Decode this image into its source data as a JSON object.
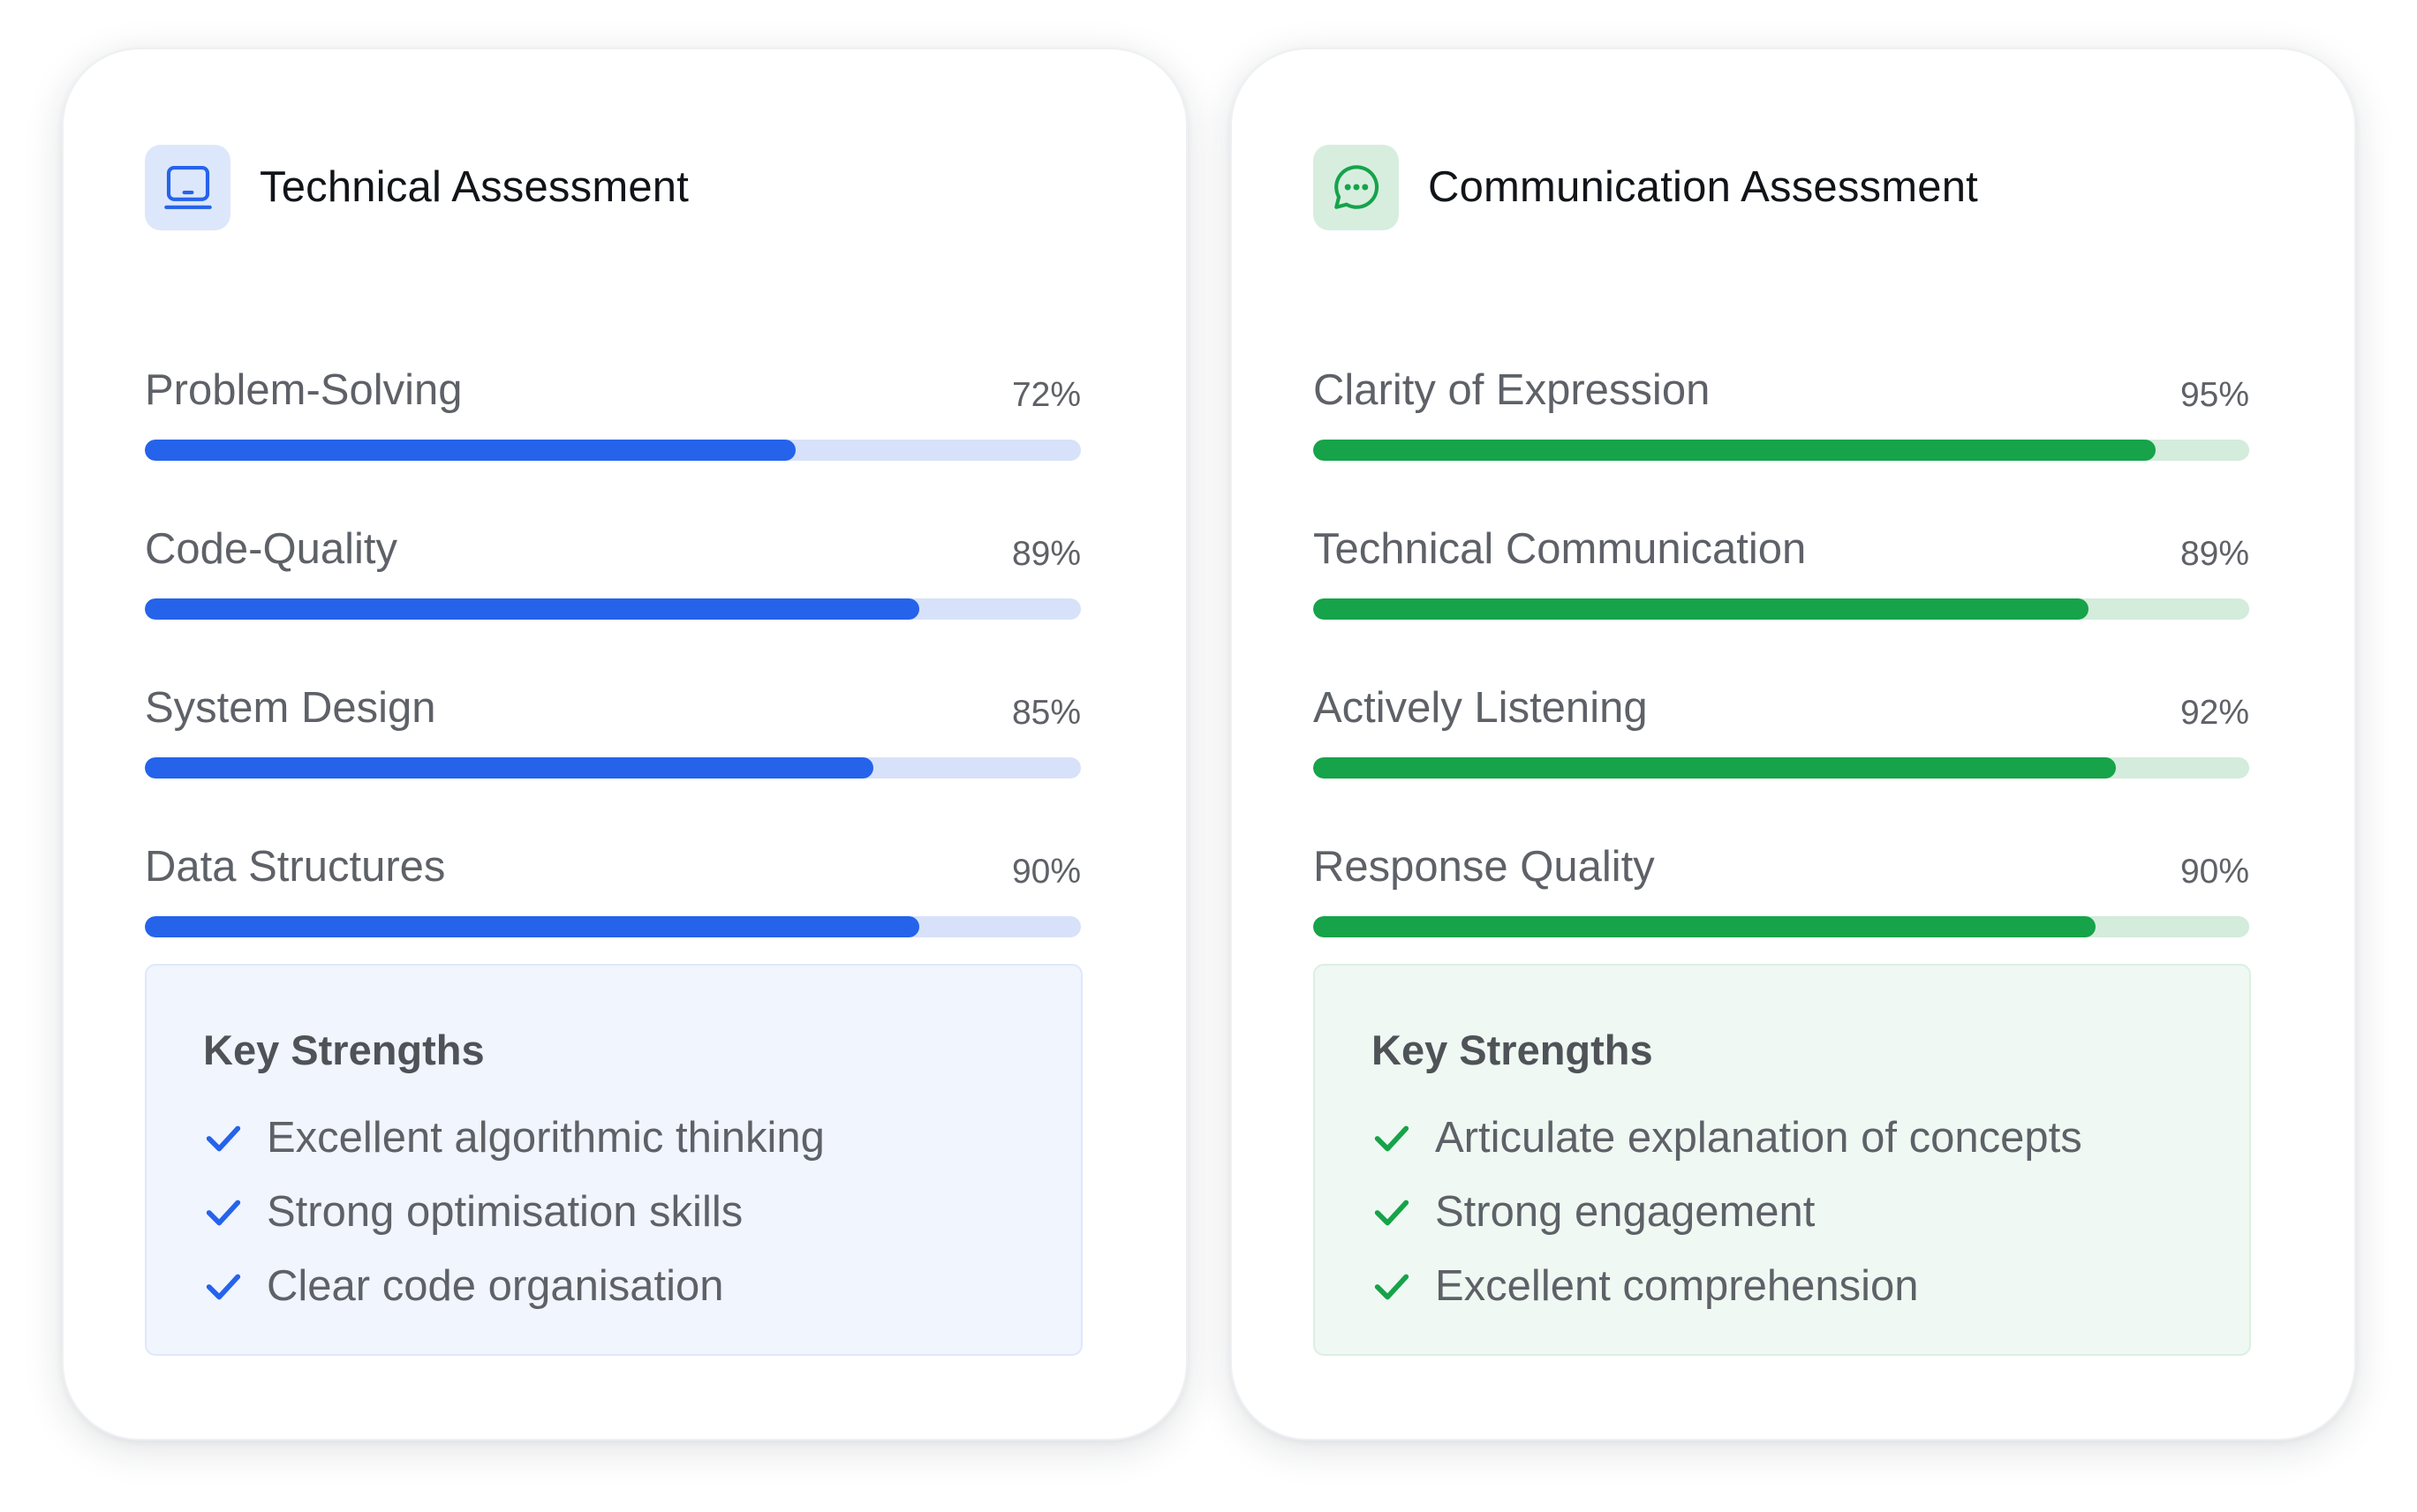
{
  "technical": {
    "title": "Technical Assessment",
    "icon": "laptop-icon",
    "accent": "#2563eb",
    "track": "#d7e2fa",
    "icon_bg": "#dde7fb",
    "panel_bg": "#f0f5fe",
    "panel_border": "#dfe8fa",
    "metrics": [
      {
        "label": "Problem-Solving",
        "value": "72%",
        "fraction": 0.695
      },
      {
        "label": "Code-Quality",
        "value": "89%",
        "fraction": 0.827
      },
      {
        "label": "System Design",
        "value": "85%",
        "fraction": 0.778
      },
      {
        "label": "Data Structures",
        "value": "90%",
        "fraction": 0.827
      }
    ],
    "strengths": {
      "title": "Key Strengths",
      "items": [
        "Excellent algorithmic thinking",
        "Strong optimisation skills",
        "Clear code organisation"
      ]
    }
  },
  "communication": {
    "title": "Communication Assessment",
    "icon": "chat-bubble-icon",
    "accent": "#16a34a",
    "track": "#d3ecdb",
    "icon_bg": "#d7eedf",
    "panel_bg": "#eff8f2",
    "panel_border": "#dcefe3",
    "metrics": [
      {
        "label": "Clarity of Expression",
        "value": "95%",
        "fraction": 0.9
      },
      {
        "label": "Technical Communication",
        "value": "89%",
        "fraction": 0.828
      },
      {
        "label": "Actively Listening",
        "value": "92%",
        "fraction": 0.858
      },
      {
        "label": "Response Quality",
        "value": "90%",
        "fraction": 0.836
      }
    ],
    "strengths": {
      "title": "Key Strengths",
      "items": [
        "Articulate explanation of concepts",
        "Strong engagement",
        "Excellent comprehension"
      ]
    }
  }
}
